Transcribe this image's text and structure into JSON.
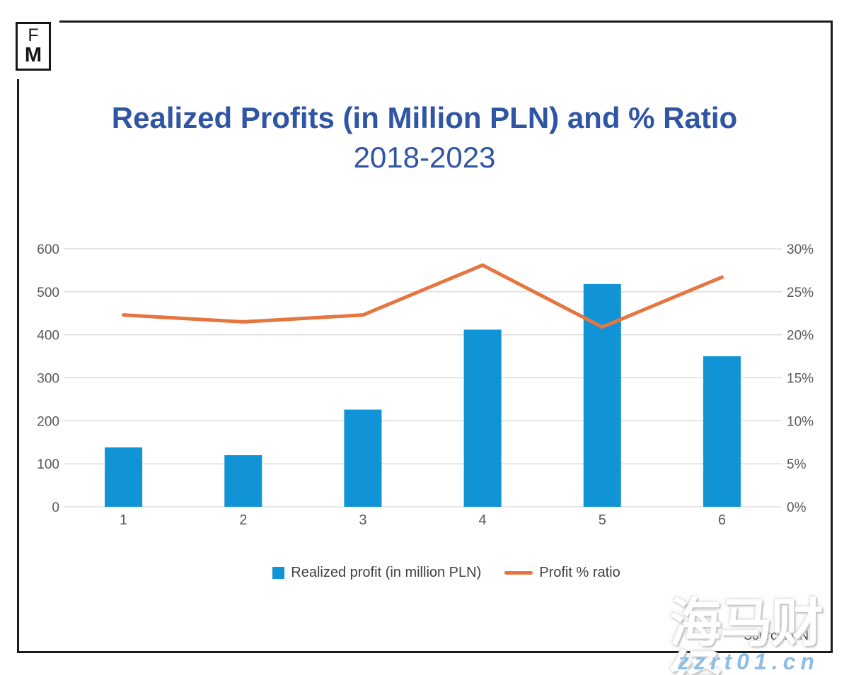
{
  "theme": {
    "title_color": "#2f55a4",
    "bar_color": "#1194d6",
    "line_color": "#e6753f",
    "grid_color": "#d9d9d9",
    "axis_text_color": "#595959",
    "legend_text_color": "#404040",
    "frame_color": "#1b1b1b",
    "watermark_url_color": "#8bbde6"
  },
  "logo": {
    "top": "F",
    "bottom": "M"
  },
  "header": {
    "title": "Realized Profits (in Million PLN) and % Ratio",
    "subtitle": "2018-2023"
  },
  "chart_data": {
    "type": "combo-bar-line",
    "title": "Realized Profits (in Million PLN) and % Ratio",
    "subtitle": "2018-2023",
    "categories": [
      "1",
      "2",
      "3",
      "4",
      "5",
      "6"
    ],
    "series": [
      {
        "name": "Realized profit (in million PLN)",
        "type": "bar",
        "axis": "left",
        "color": "#1194d6",
        "values": [
          138,
          120,
          226,
          412,
          518,
          350
        ]
      },
      {
        "name": "Profit % ratio",
        "type": "line",
        "axis": "right",
        "color": "#e6753f",
        "values": [
          22.3,
          21.5,
          22.3,
          28.1,
          20.9,
          26.7
        ]
      }
    ],
    "left_axis": {
      "min": 0,
      "max": 600,
      "ticks": [
        "0",
        "100",
        "200",
        "300",
        "400",
        "500",
        "600"
      ]
    },
    "right_axis": {
      "min": 0,
      "max": 30,
      "ticks": [
        "0%",
        "5%",
        "10%",
        "15%",
        "20%",
        "25%",
        "30%"
      ]
    },
    "grid": true,
    "legend_position": "bottom"
  },
  "legend": {
    "items": [
      {
        "label": "Realized profit (in million PLN)",
        "swatch": "square"
      },
      {
        "label": "Profit % ratio",
        "swatch": "line"
      }
    ]
  },
  "source_label": "Source: KNF",
  "watermark": {
    "text_cjk": "海马财经",
    "text_url": "zzrt01.cn"
  }
}
